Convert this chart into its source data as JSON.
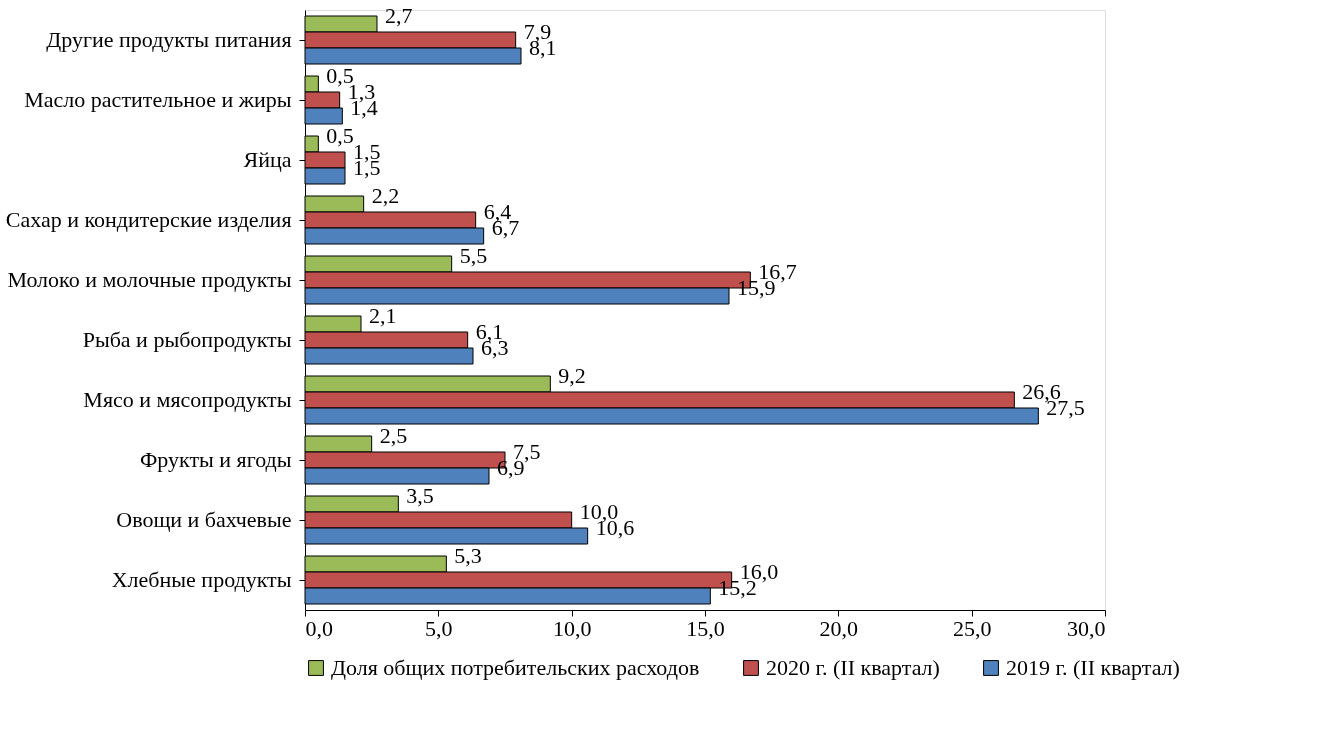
{
  "chart_data": {
    "type": "bar",
    "orientation": "horizontal",
    "categories": [
      "Другие продукты питания",
      "Масло растительное и жиры",
      "Яйца",
      "Сахар и кондитерские изделия",
      "Молоко и молочные продукты",
      "Рыба и рыбопродукты",
      "Мясо и мясопродукты",
      "Фрукты и ягоды",
      "Овощи и бахчевые",
      "Хлебные продукты"
    ],
    "series": [
      {
        "name": "Доля общих потребительских расходов",
        "color": "#9bbb59",
        "values": [
          2.7,
          0.5,
          0.5,
          2.2,
          5.5,
          2.1,
          9.2,
          2.5,
          3.5,
          5.3
        ],
        "value_labels": [
          "2,7",
          "0,5",
          "0,5",
          "2,2",
          "5,5",
          "2,1",
          "9,2",
          "2,5",
          "3,5",
          "5,3"
        ]
      },
      {
        "name": "2020 г. (II квартал)",
        "color": "#c0504d",
        "values": [
          7.9,
          1.3,
          1.5,
          6.4,
          16.7,
          6.1,
          26.6,
          7.5,
          10.0,
          16.0
        ],
        "value_labels": [
          "7,9",
          "1,3",
          "1,5",
          "6,4",
          "16,7",
          "6,1",
          "26,6",
          "7,5",
          "10,0",
          "16,0"
        ]
      },
      {
        "name": "2019 г. (II квартал)",
        "color": "#4f81bd",
        "values": [
          8.1,
          1.4,
          1.5,
          6.7,
          15.9,
          6.3,
          27.5,
          6.9,
          10.6,
          15.2
        ],
        "value_labels": [
          "8,1",
          "1,4",
          "1,5",
          "6,7",
          "15,9",
          "6,3",
          "27,5",
          "6,9",
          "10,6",
          "15,2"
        ]
      }
    ],
    "xlim": [
      0,
      30
    ],
    "xticks": [
      {
        "value": 0,
        "label": "0,0"
      },
      {
        "value": 5,
        "label": "5,0"
      },
      {
        "value": 10,
        "label": "10,0"
      },
      {
        "value": 15,
        "label": "15,0"
      },
      {
        "value": 20,
        "label": "20,0"
      },
      {
        "value": 25,
        "label": "25,0"
      },
      {
        "value": 30,
        "label": "30,0"
      }
    ],
    "grid": false,
    "legend": "bottom"
  }
}
